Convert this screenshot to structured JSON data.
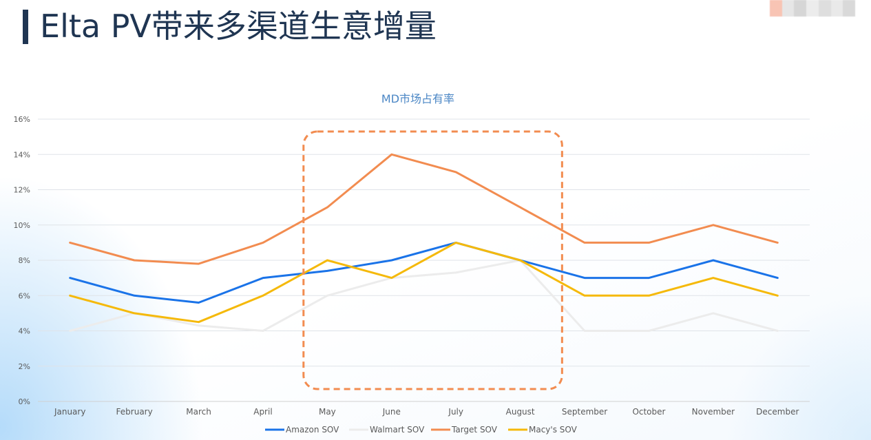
{
  "page": {
    "title": "Elta PV带来多渠道生意增量"
  },
  "chart_data": {
    "type": "line",
    "title": "MD市场占有率",
    "xlabel": "",
    "ylabel": "",
    "categories": [
      "January",
      "February",
      "March",
      "April",
      "May",
      "June",
      "July",
      "August",
      "September",
      "October",
      "November",
      "December"
    ],
    "ylim": [
      0,
      16
    ],
    "yticks": [
      0,
      2,
      4,
      6,
      8,
      10,
      12,
      14,
      16
    ],
    "ytick_labels": [
      "0%",
      "2%",
      "4%",
      "6%",
      "8%",
      "10%",
      "12%",
      "14%",
      "16%"
    ],
    "grid": true,
    "legend_position": "bottom",
    "series": [
      {
        "name": "Amazon SOV",
        "color": "#1a73e8",
        "values": [
          7.0,
          6.0,
          5.6,
          7.0,
          7.4,
          8.0,
          9.0,
          8.0,
          7.0,
          7.0,
          8.0,
          7.0
        ]
      },
      {
        "name": "Walmart SOV",
        "color": "#ececec",
        "values": [
          4.0,
          5.0,
          4.3,
          4.0,
          6.0,
          7.0,
          7.3,
          8.0,
          4.0,
          4.0,
          5.0,
          4.0
        ]
      },
      {
        "name": "Target SOV",
        "color": "#f28c50",
        "values": [
          9.0,
          8.0,
          7.8,
          9.0,
          11.0,
          14.0,
          13.0,
          11.0,
          9.0,
          9.0,
          10.0,
          9.0
        ]
      },
      {
        "name": "Macy's SOV",
        "color": "#f5b90a",
        "values": [
          6.0,
          5.0,
          4.5,
          6.0,
          8.0,
          7.0,
          9.0,
          8.0,
          6.0,
          6.0,
          7.0,
          6.0
        ]
      }
    ],
    "highlight": {
      "from_category": "May",
      "to_category": "August",
      "color": "#f28c50",
      "style": "dashed"
    }
  },
  "corner_swatches": [
    "#f8c4b4",
    "#e6e6e6",
    "#d6d6d6",
    "#ececec",
    "#dedede",
    "#e9e9e9",
    "#d9d9d9"
  ]
}
